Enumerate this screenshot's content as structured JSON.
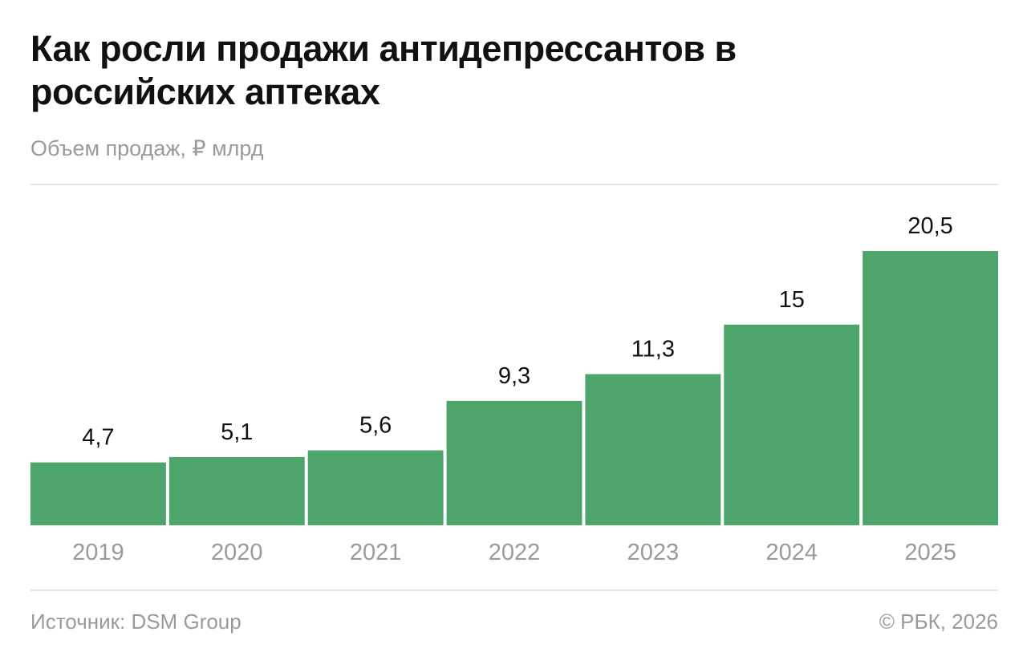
{
  "title": "Как росли продажи антидепрессантов в российских аптеках",
  "subtitle": "Объем продаж, ₽ млрд",
  "source": "Источник: DSM Group",
  "copyright": "© РБК, 2026",
  "chart_data": {
    "type": "bar",
    "title": "Как росли продажи антидепрессантов в российских аптеках",
    "ylabel": "Объем продаж, ₽ млрд",
    "categories": [
      "2019",
      "2020",
      "2021",
      "2022",
      "2023",
      "2024",
      "2025"
    ],
    "values": [
      4.7,
      5.1,
      5.6,
      9.3,
      11.3,
      15,
      20.5
    ],
    "labels": [
      "4,7",
      "5,1",
      "5,6",
      "9,3",
      "11,3",
      "15",
      "20,5"
    ],
    "ylim": [
      0,
      20.5
    ],
    "grid": false,
    "bar_color": "#4ea56c"
  }
}
